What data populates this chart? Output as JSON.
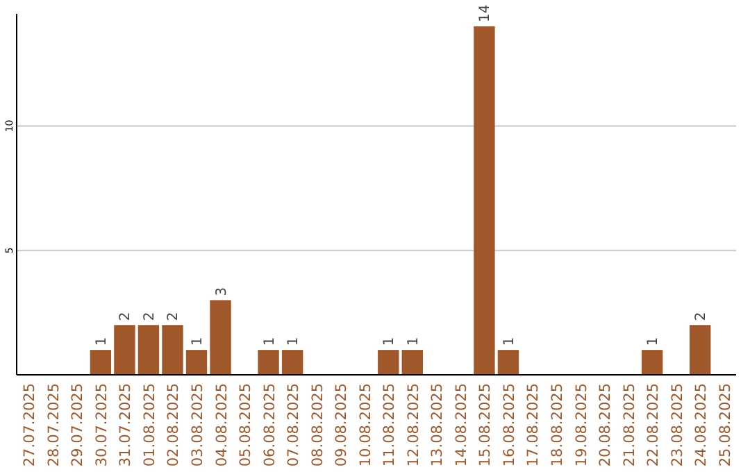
{
  "chart_data": {
    "type": "bar",
    "categories": [
      "27.07.2025",
      "28.07.2025",
      "29.07.2025",
      "30.07.2025",
      "31.07.2025",
      "01.08.2025",
      "02.08.2025",
      "03.08.2025",
      "04.08.2025",
      "05.08.2025",
      "06.08.2025",
      "07.08.2025",
      "08.08.2025",
      "09.08.2025",
      "10.08.2025",
      "11.08.2025",
      "12.08.2025",
      "13.08.2025",
      "14.08.2025",
      "15.08.2025",
      "16.08.2025",
      "17.08.2025",
      "18.08.2025",
      "19.08.2025",
      "20.08.2025",
      "21.08.2025",
      "22.08.2025",
      "23.08.2025",
      "24.08.2025",
      "25.08.2025"
    ],
    "values": [
      0,
      0,
      0,
      1,
      2,
      2,
      2,
      1,
      3,
      0,
      1,
      1,
      0,
      0,
      0,
      1,
      1,
      0,
      0,
      14,
      1,
      0,
      0,
      0,
      0,
      0,
      1,
      0,
      2,
      0
    ],
    "value_labels": [
      null,
      null,
      null,
      "1",
      "2",
      "2",
      "2",
      "1",
      "3",
      null,
      "1",
      "1",
      null,
      null,
      null,
      "1",
      "1",
      null,
      null,
      "14",
      "1",
      null,
      null,
      null,
      null,
      null,
      "1",
      null,
      "2",
      null
    ],
    "color": "#a0572a",
    "ylim": [
      0,
      14.5
    ],
    "yticks": [
      5,
      10
    ],
    "grid": "y"
  }
}
